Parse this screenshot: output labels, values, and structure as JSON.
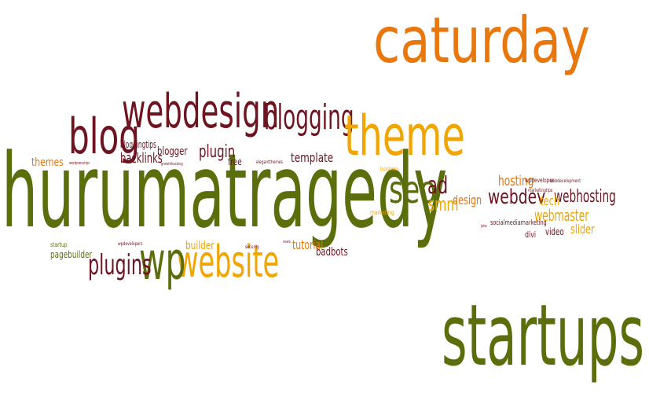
{
  "palette": {
    "orange": "#E8770D",
    "gold": "#F0A500",
    "olive": "#5A6E0B",
    "maroon": "#6E1420",
    "light": "#C6A44A"
  },
  "words": [
    {
      "text": "caturday",
      "color": "orange"
    },
    {
      "text": "startups",
      "color": "olive"
    },
    {
      "text": "hurumatragedy",
      "color": "olive"
    },
    {
      "text": "webdesign",
      "color": "maroon"
    },
    {
      "text": "blogging",
      "color": "maroon"
    },
    {
      "text": "theme",
      "color": "gold"
    },
    {
      "text": "blog",
      "color": "maroon"
    },
    {
      "text": "website",
      "color": "gold"
    },
    {
      "text": "wp",
      "color": "olive"
    },
    {
      "text": "plugins",
      "color": "maroon"
    },
    {
      "text": "seo",
      "color": "olive"
    },
    {
      "text": "ad",
      "color": "maroon"
    },
    {
      "text": "smm",
      "color": "gold"
    },
    {
      "text": "design",
      "color": "orange"
    },
    {
      "text": "webdev",
      "color": "maroon"
    },
    {
      "text": "webhosting",
      "color": "maroon"
    },
    {
      "text": "hosting",
      "color": "orange"
    },
    {
      "text": "tech",
      "color": "gold"
    },
    {
      "text": "webmaster",
      "color": "gold"
    },
    {
      "text": "slider",
      "color": "gold"
    },
    {
      "text": "video",
      "color": "maroon"
    },
    {
      "text": "divi",
      "color": "maroon"
    },
    {
      "text": "socialmediamarketing",
      "color": "maroon"
    },
    {
      "text": "wpdeveloper",
      "color": "maroon"
    },
    {
      "text": "webdevelopment",
      "color": "maroon"
    },
    {
      "text": "marketingtips",
      "color": "maroon"
    },
    {
      "text": "template",
      "color": "maroon"
    },
    {
      "text": "plugin",
      "color": "maroon"
    },
    {
      "text": "blogger",
      "color": "maroon"
    },
    {
      "text": "bloggingtips",
      "color": "maroon"
    },
    {
      "text": "backlinks",
      "color": "maroon"
    },
    {
      "text": "themes",
      "color": "orange"
    },
    {
      "text": "free",
      "color": "maroon"
    },
    {
      "text": "builder",
      "color": "gold"
    },
    {
      "text": "tutorial",
      "color": "orange"
    },
    {
      "text": "badbots",
      "color": "maroon"
    },
    {
      "text": "pagebuilder",
      "color": "olive"
    },
    {
      "text": "startup",
      "color": "olive"
    },
    {
      "text": "marketing",
      "color": "gold"
    },
    {
      "text": "business",
      "color": "gold"
    },
    {
      "text": "security",
      "color": "maroon"
    },
    {
      "text": "elegantthemes",
      "color": "maroon"
    },
    {
      "text": "wpdevelopers",
      "color": "maroon"
    },
    {
      "text": "growthhacking",
      "color": "maroon"
    },
    {
      "text": "wordpresstips",
      "color": "maroon"
    },
    {
      "text": "jobs",
      "color": "maroon"
    },
    {
      "text": "news",
      "color": "maroon"
    }
  ]
}
